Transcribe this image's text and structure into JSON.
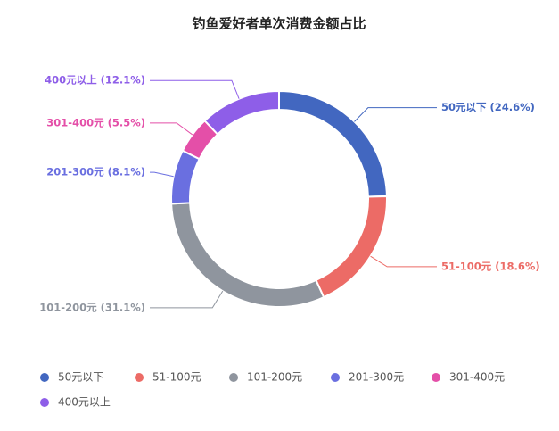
{
  "chart_data": {
    "type": "pie",
    "title": "钓鱼爱好者单次消费金额占比",
    "categories": [
      "50元以下",
      "51-100元",
      "101-200元",
      "201-300元",
      "301-400元",
      "400元以上"
    ],
    "values": [
      24.6,
      18.6,
      31.1,
      8.1,
      5.5,
      12.1
    ],
    "value_labels": [
      "50元以下 (24.6%)",
      "51-100元 (18.6%)",
      "101-200元 (31.1%)",
      "201-300元 (8.1%)",
      "301-400元 (5.5%)",
      "400元以上 (12.1%)"
    ],
    "colors": [
      "#4267c0",
      "#ec6b66",
      "#8f959e",
      "#6a6fe0",
      "#e44fa8",
      "#8e5ee8"
    ],
    "legend": "bottom"
  }
}
